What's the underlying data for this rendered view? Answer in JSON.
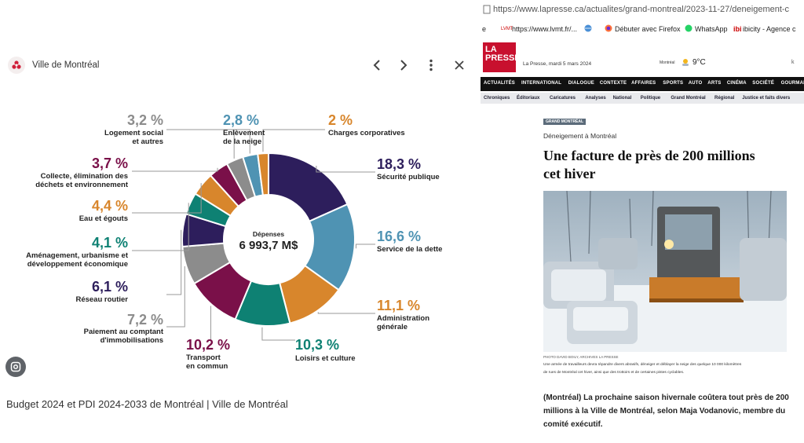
{
  "left_panel": {
    "source": "Ville de Montréal",
    "caption": "Budget 2024 et PDI 2024-2033 de Montréal | Ville de Montréal",
    "icons": [
      "chevron-left-icon",
      "chevron-right-icon",
      "more-vert-icon",
      "close-icon",
      "lens-icon"
    ]
  },
  "chart_data": {
    "type": "pie",
    "center_label": "Dépenses",
    "center_value": "6 993,7 M$",
    "slices": [
      {
        "label": "Sécurité publique",
        "pct_text": "18,3 %",
        "value": 18.3,
        "color": "#2d1e5c"
      },
      {
        "label": "Service de la dette",
        "pct_text": "16,6 %",
        "value": 16.6,
        "color": "#4f93b3"
      },
      {
        "label": "Administration générale",
        "pct_text": "11,1 %",
        "value": 11.1,
        "color": "#d8862c"
      },
      {
        "label": "Loisirs et culture",
        "pct_text": "10,3 %",
        "value": 10.3,
        "color": "#0e8173"
      },
      {
        "label": "Transport en commun",
        "pct_text": "10,2 %",
        "value": 10.2,
        "color": "#7a1049"
      },
      {
        "label": "Paiement au comptant d'immobilisations",
        "pct_text": "7,2 %",
        "value": 7.2,
        "color": "#8c8c8c"
      },
      {
        "label": "Réseau routier",
        "pct_text": "6,1 %",
        "value": 6.1,
        "color": "#2d1e5c"
      },
      {
        "label": "Aménagement, urbanisme et développement économique",
        "pct_text": "4,1 %",
        "value": 4.1,
        "color": "#0e8173"
      },
      {
        "label": "Eau et égouts",
        "pct_text": "4,4 %",
        "value": 4.4,
        "color": "#d8862c"
      },
      {
        "label": "Collecte, élimination des déchets et environnement",
        "pct_text": "3,7 %",
        "value": 3.7,
        "color": "#7a1049"
      },
      {
        "label": "Logement social et autres",
        "pct_text": "3,2 %",
        "value": 3.2,
        "color": "#8c8c8c"
      },
      {
        "label": "Enlèvement de la neige",
        "pct_text": "2,8 %",
        "value": 2.8,
        "color": "#4f93b3"
      },
      {
        "label": "Charges corporatives",
        "pct_text": "2 %",
        "value": 2.0,
        "color": "#d8862c"
      }
    ],
    "label_lines": {
      "securite": [
        "Sécurité publique"
      ],
      "dette": [
        "Service de la dette"
      ],
      "admin": [
        "Administration",
        "générale"
      ],
      "loisirs": [
        "Loisirs et culture"
      ],
      "transport": [
        "Transport",
        "en commun"
      ],
      "paiement": [
        "Paiement au comptant",
        "d'immobilisations"
      ],
      "reseau": [
        "Réseau routier"
      ],
      "amenagement": [
        "Aménagement, urbanisme et",
        "développement économique"
      ],
      "eau": [
        "Eau et égouts"
      ],
      "collecte": [
        "Collecte, élimination des",
        "déchets et environnement"
      ],
      "logement": [
        "Logement social",
        "et autres"
      ],
      "neige": [
        "Enlèvement",
        "de la neige"
      ],
      "charges": [
        "Charges corporatives"
      ]
    }
  },
  "right_panel": {
    "url": "https://www.lapresse.ca/actualites/grand-montreal/2023-11-27/deneigement-c",
    "bookmarks": [
      "e",
      "https://www.lvmt.fr/...",
      "Débuter avec Firefox",
      "WhatsApp",
      "ibicity - Agence c"
    ],
    "logo_line1": "LA",
    "logo_line2": "PRESSE",
    "date": "La Presse, mardi 5 mars 2024",
    "weather_city": "Montréal",
    "weather_temp": "9°C",
    "nav": [
      "ACTUALITÉS",
      "INTERNATIONAL",
      "DIALOGUE",
      "CONTEXTE",
      "AFFAIRES",
      "SPORTS",
      "AUTO",
      "ARTS",
      "CINÉMA",
      "SOCIÉTÉ",
      "GOURMAND"
    ],
    "subnav": [
      "Chroniques",
      "Éditoriaux",
      "Caricatures",
      "Analyses",
      "National",
      "Politique",
      "Grand Montréal",
      "Régional",
      "Justice et faits divers",
      "San"
    ],
    "tag": "GRAND MONTRÉAL",
    "kicker": "Déneigement à Montréal",
    "headline_1": "Une facture de près de 200 millions",
    "headline_2": "cet hiver",
    "photo_credit": "PHOTO DAVID BOILY, ARCHIVES LA PRESSE",
    "photo_caption_1": "Une armée de travailleurs devra répandre divers abrasifs, déneiger et déblayer la neige des quelque 10 000 kilomètres",
    "photo_caption_2": "de rues de Montréal cet hiver, ainsi que des trottoirs et de certaines pistes cyclables.",
    "lead_1": "(Montréal) La prochaine saison hivernale coûtera tout près de 200",
    "lead_2": "millions à la Ville de Montréal, selon Maja Vodanovic, membre du",
    "lead_3": "comité exécutif."
  }
}
